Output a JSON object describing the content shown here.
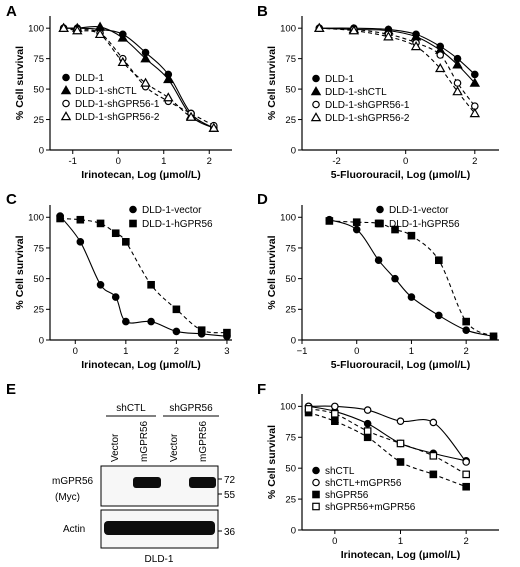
{
  "colors": {
    "ink": "#000000",
    "band": "#0d0d0d",
    "paper": "#ffffff",
    "blot_bg": "#f7f7f7"
  },
  "chart_data": [
    {
      "panel": "A",
      "type": "scatter",
      "xlabel": "Irinotecan, Log (μmol/L)",
      "ylabel": "% Cell survival",
      "xlim": [
        -1.5,
        2.5
      ],
      "ylim": [
        0,
        110
      ],
      "xticks": [
        -1,
        0,
        1,
        2
      ],
      "xtick_labels": [
        "-1",
        "0",
        "1",
        "2"
      ],
      "yticks": [
        0,
        25,
        50,
        75,
        100
      ],
      "ytick_labels": [
        "0",
        "25",
        "50",
        "75",
        "100"
      ],
      "legend": "bottom-left",
      "series": [
        {
          "name": "DLD-1",
          "marker": "circle-filled",
          "line": "solid",
          "x": [
            -1.2,
            -0.9,
            -0.4,
            0.1,
            0.6,
            1.1,
            1.6,
            2.1
          ],
          "y": [
            100,
            100,
            99,
            95,
            80,
            62,
            30,
            18
          ]
        },
        {
          "name": "DLD-1-shCTL",
          "marker": "triangle-filled",
          "line": "solid",
          "x": [
            -1.2,
            -0.9,
            -0.4,
            0.1,
            0.6,
            1.1,
            1.6,
            2.1
          ],
          "y": [
            100,
            100,
            101,
            92,
            75,
            58,
            28,
            18
          ]
        },
        {
          "name": "DLD-1-shGPR56-1",
          "marker": "circle-open",
          "line": "dashed",
          "x": [
            -1.2,
            -0.9,
            -0.4,
            0.1,
            0.6,
            1.1,
            1.6,
            2.1
          ],
          "y": [
            100,
            99,
            96,
            75,
            52,
            40,
            30,
            20
          ]
        },
        {
          "name": "DLD-1-shGPR56-2",
          "marker": "triangle-open",
          "line": "dashed",
          "x": [
            -1.2,
            -0.9,
            -0.4,
            0.1,
            0.6,
            1.1,
            1.6,
            2.1
          ],
          "y": [
            100,
            98,
            95,
            72,
            55,
            43,
            27,
            18
          ]
        }
      ]
    },
    {
      "panel": "B",
      "type": "scatter",
      "xlabel": "5-Fluorouracil, Log (μmol/L)",
      "ylabel": "% Cell survival",
      "xlim": [
        -3,
        2.7
      ],
      "ylim": [
        0,
        110
      ],
      "xticks": [
        -2,
        0,
        2
      ],
      "xtick_labels": [
        "-2",
        "0",
        "2"
      ],
      "yticks": [
        0,
        25,
        50,
        75,
        100
      ],
      "ytick_labels": [
        "0",
        "25",
        "50",
        "75",
        "100"
      ],
      "legend": "bottom-left",
      "series": [
        {
          "name": "DLD-1",
          "marker": "circle-filled",
          "line": "solid",
          "x": [
            -2.5,
            -1.5,
            -0.5,
            0.3,
            1.0,
            1.5,
            2.0
          ],
          "y": [
            100,
            100,
            99,
            95,
            85,
            75,
            62
          ]
        },
        {
          "name": "DLD-1-shCTL",
          "marker": "triangle-filled",
          "line": "solid",
          "x": [
            -2.5,
            -1.5,
            -0.5,
            0.3,
            1.0,
            1.5,
            2.0
          ],
          "y": [
            100,
            99,
            98,
            93,
            82,
            70,
            55
          ]
        },
        {
          "name": "DLD-1-shGPR56-1",
          "marker": "circle-open",
          "line": "dashed",
          "x": [
            -2.5,
            -1.5,
            -0.5,
            0.3,
            1.0,
            1.5,
            2.0
          ],
          "y": [
            100,
            99,
            95,
            88,
            78,
            55,
            36
          ]
        },
        {
          "name": "DLD-1-shGPR56-2",
          "marker": "triangle-open",
          "line": "dashed",
          "x": [
            -2.5,
            -1.5,
            -0.5,
            0.3,
            1.0,
            1.5,
            2.0
          ],
          "y": [
            100,
            98,
            93,
            85,
            67,
            48,
            30
          ]
        }
      ]
    },
    {
      "panel": "C",
      "type": "scatter",
      "xlabel": "Irinotecan, Log (μmol/L)",
      "ylabel": "% Cell survival",
      "xlim": [
        -0.5,
        3.1
      ],
      "ylim": [
        0,
        110
      ],
      "xticks": [
        0,
        1,
        2,
        3
      ],
      "xtick_labels": [
        "0",
        "1",
        "2",
        "3"
      ],
      "yticks": [
        0,
        25,
        50,
        75,
        100
      ],
      "ytick_labels": [
        "0",
        "25",
        "50",
        "75",
        "100"
      ],
      "legend": "top-right",
      "series": [
        {
          "name": "DLD-1-vector",
          "marker": "circle-filled",
          "line": "solid",
          "x": [
            -0.3,
            0.1,
            0.5,
            0.8,
            1.0,
            1.5,
            2.0,
            2.5,
            3.0
          ],
          "y": [
            101,
            80,
            45,
            35,
            15,
            15,
            7,
            5,
            3
          ]
        },
        {
          "name": "DLD-1-hGPR56",
          "marker": "square-filled",
          "line": "dashed",
          "x": [
            -0.3,
            0.1,
            0.5,
            0.8,
            1.0,
            1.5,
            2.0,
            2.5,
            3.0
          ],
          "y": [
            99,
            98,
            95,
            87,
            80,
            45,
            25,
            8,
            6
          ]
        }
      ]
    },
    {
      "panel": "D",
      "type": "scatter",
      "xlabel": "5-Fluorouracil, Log (μmol/L)",
      "ylabel": "% Cell survival",
      "xlim": [
        -1,
        2.6
      ],
      "ylim": [
        0,
        110
      ],
      "xticks": [
        -1,
        0,
        1,
        2
      ],
      "xtick_labels": [
        "−1",
        "0",
        "1",
        "2"
      ],
      "yticks": [
        0,
        25,
        50,
        75,
        100
      ],
      "ytick_labels": [
        "0",
        "25",
        "50",
        "75",
        "100"
      ],
      "legend": "top-right",
      "series": [
        {
          "name": "DLD-1-vector",
          "marker": "circle-filled",
          "line": "solid",
          "x": [
            -0.5,
            0.0,
            0.4,
            0.7,
            1.0,
            1.5,
            2.0,
            2.5
          ],
          "y": [
            98,
            90,
            65,
            50,
            35,
            20,
            8,
            3
          ]
        },
        {
          "name": "DLD-1-hGPR56",
          "marker": "square-filled",
          "line": "dashed",
          "x": [
            -0.5,
            0.0,
            0.4,
            0.7,
            1.0,
            1.5,
            2.0,
            2.5
          ],
          "y": [
            97,
            96,
            95,
            90,
            85,
            65,
            15,
            3
          ]
        }
      ]
    },
    {
      "panel": "F",
      "type": "scatter",
      "xlabel": "Irinotecan, Log (μmol/L)",
      "ylabel": "% Cell survival",
      "xlim": [
        -0.5,
        2.5
      ],
      "ylim": [
        0,
        110
      ],
      "xticks": [
        0,
        1,
        2
      ],
      "xtick_labels": [
        "0",
        "1",
        "2"
      ],
      "yticks": [
        0,
        25,
        50,
        75,
        100
      ],
      "ytick_labels": [
        "0",
        "25",
        "50",
        "75",
        "100"
      ],
      "legend": "bottom-left",
      "series": [
        {
          "name": "shCTL",
          "marker": "circle-filled",
          "line": "solid",
          "x": [
            -0.4,
            0.0,
            0.5,
            1.0,
            1.5,
            2.0
          ],
          "y": [
            100,
            96,
            86,
            70,
            62,
            56
          ]
        },
        {
          "name": "shCTL+mGPR56",
          "marker": "circle-open",
          "line": "solid",
          "x": [
            -0.4,
            0.0,
            0.5,
            1.0,
            1.5,
            2.0
          ],
          "y": [
            100,
            100,
            97,
            88,
            87,
            55
          ]
        },
        {
          "name": "shGPR56",
          "marker": "square-filled",
          "line": "dashed",
          "x": [
            -0.4,
            0.0,
            0.5,
            1.0,
            1.5,
            2.0
          ],
          "y": [
            95,
            88,
            75,
            55,
            45,
            35
          ]
        },
        {
          "name": "shGPR56+mGPR56",
          "marker": "square-open",
          "line": "dashed",
          "x": [
            -0.4,
            0.0,
            0.5,
            1.0,
            1.5,
            2.0
          ],
          "y": [
            98,
            94,
            80,
            70,
            60,
            45
          ]
        }
      ]
    }
  ],
  "blot": {
    "panel": "E",
    "groups": [
      "shCTL",
      "shGPR56"
    ],
    "lanes": [
      "Vector",
      "mGPR56",
      "Vector",
      "mGPR56"
    ],
    "row_labels": [
      "mGPR56",
      "(Myc)",
      "Actin"
    ],
    "markers": [
      "72",
      "55",
      "36"
    ],
    "cell_line": "DLD-1"
  }
}
